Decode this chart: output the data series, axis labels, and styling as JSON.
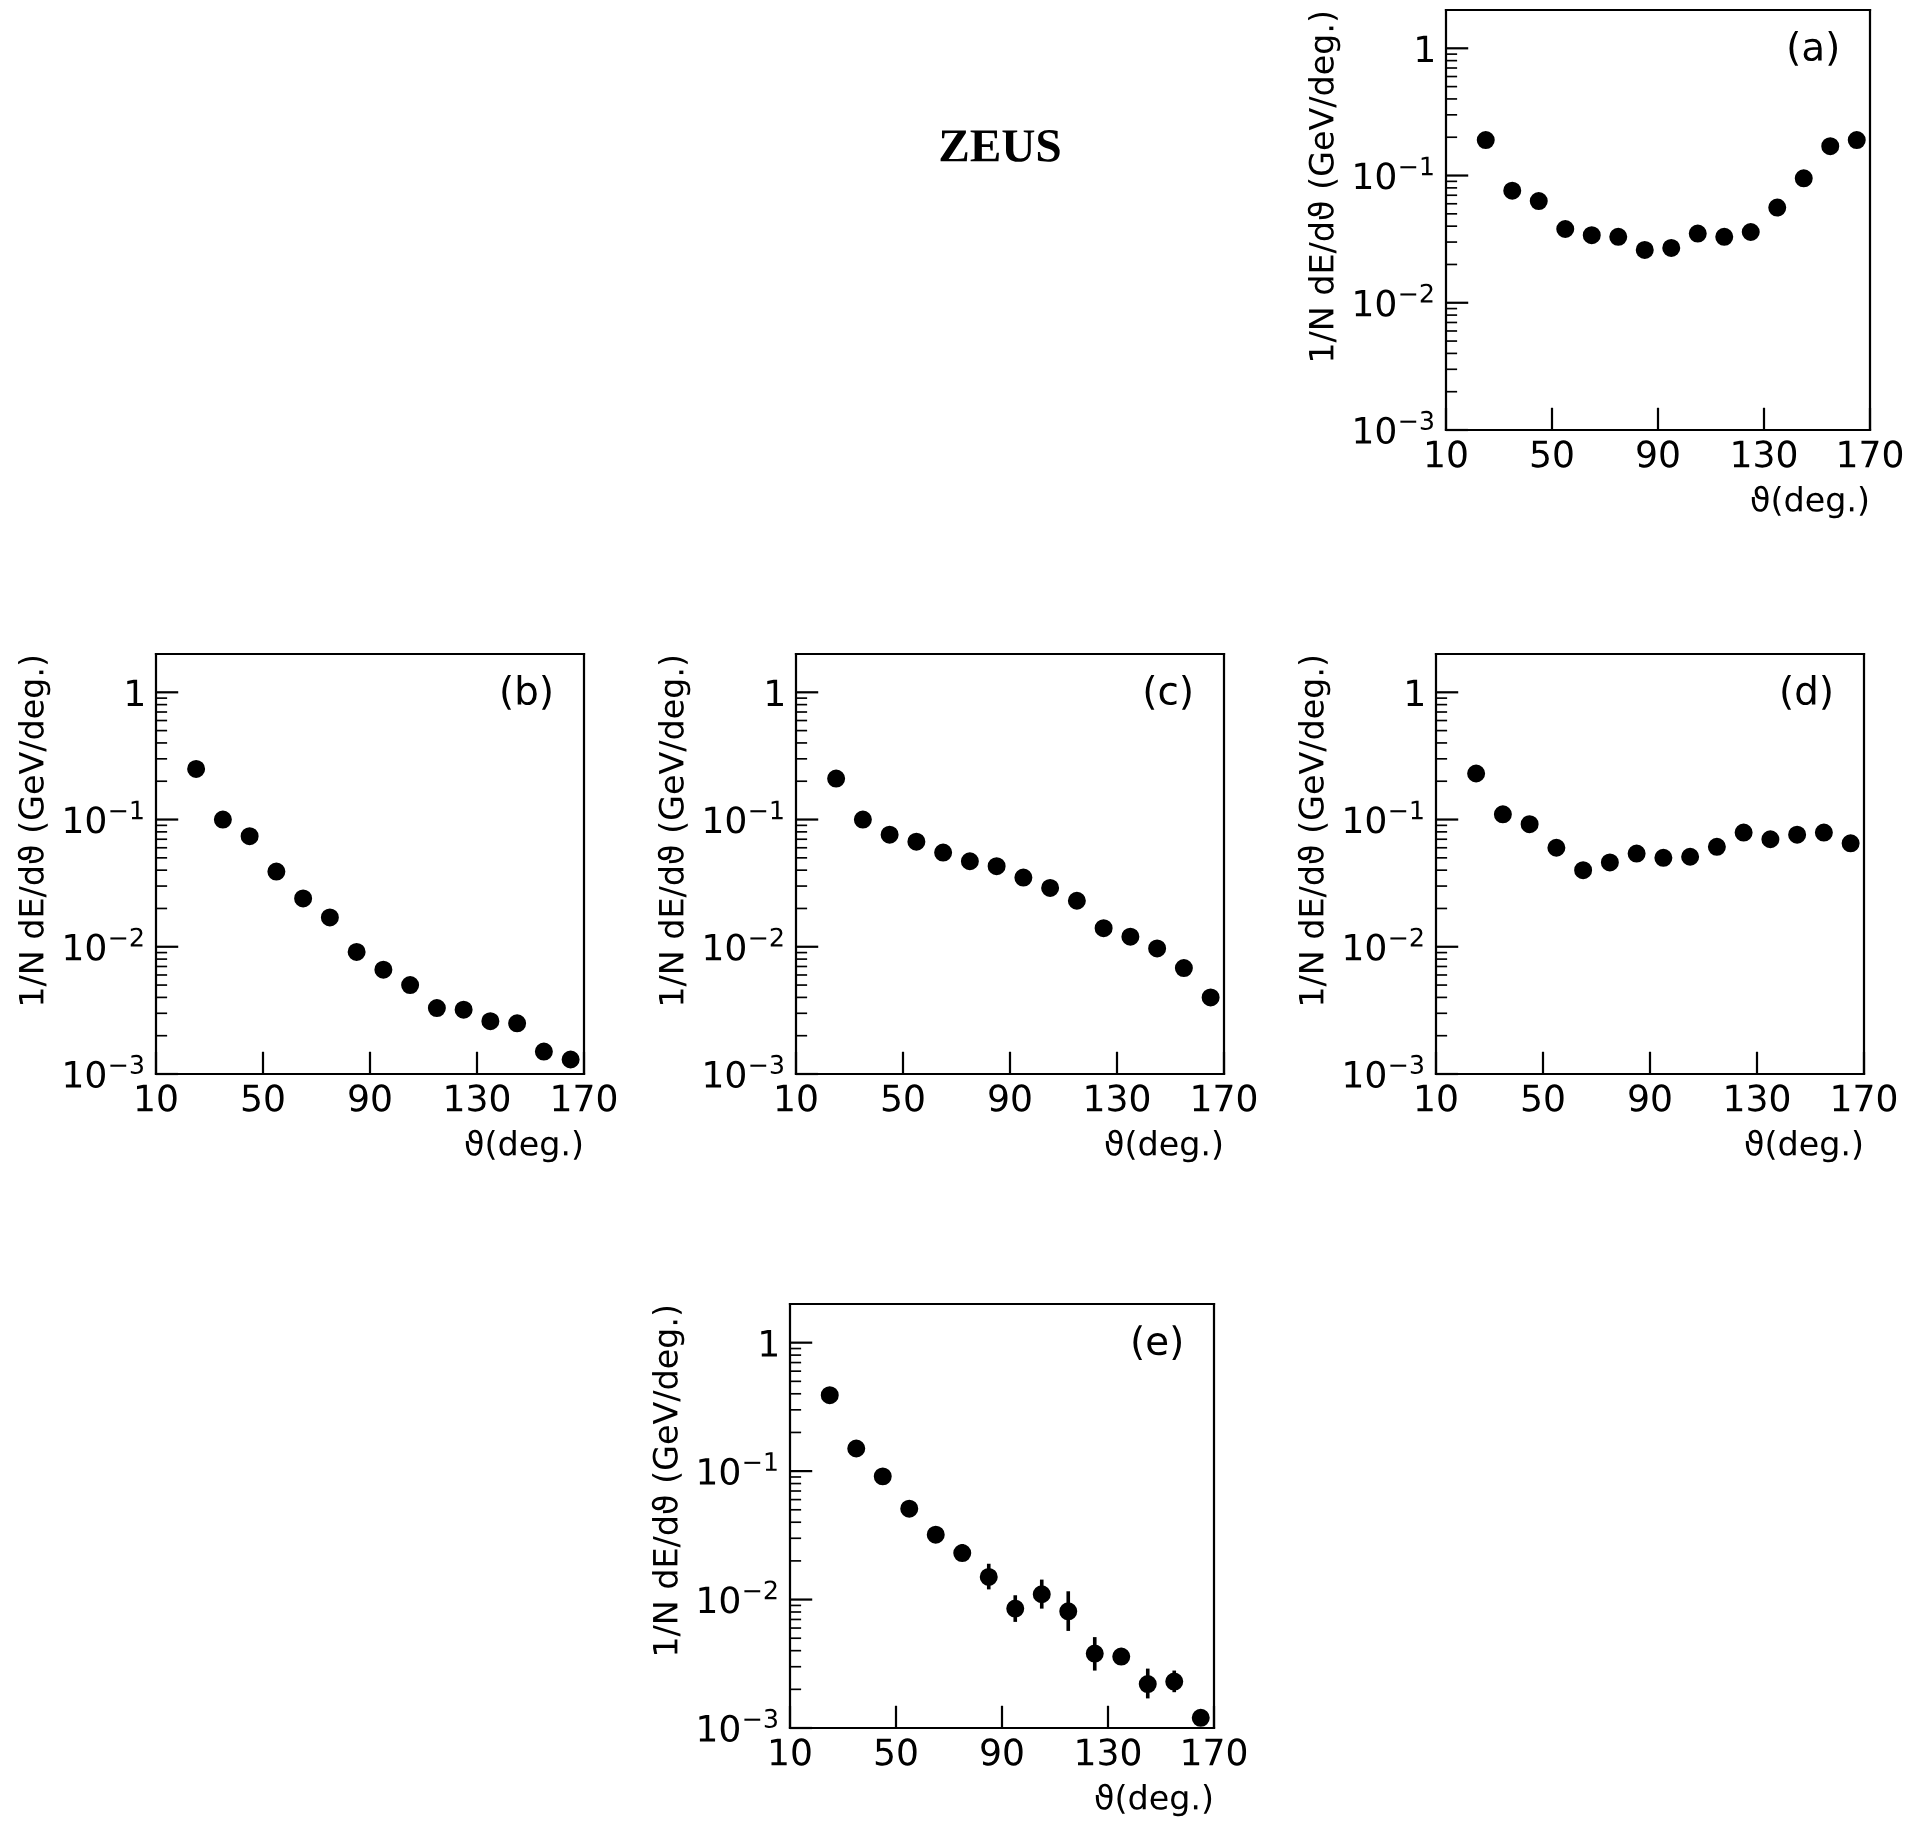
{
  "chart_data": [
    {
      "type": "other",
      "title": "ZEUS"
    },
    {
      "type": "scatter",
      "xlabel": "ϑ(deg.)",
      "ylabel": "1/N dE/dϑ (GeV/deg.)",
      "annotations": [
        "(a)"
      ],
      "log": "y",
      "marker": "circle",
      "x": [
        25,
        35,
        45,
        55,
        65,
        75,
        85,
        95,
        105,
        115,
        125,
        135,
        145,
        155,
        165
      ],
      "series": [
        {
          "color": "#000000",
          "values": [
            0.19,
            0.076,
            0.063,
            0.038,
            0.034,
            0.033,
            0.026,
            0.027,
            0.035,
            0.033,
            0.036,
            0.056,
            0.095,
            0.17,
            0.19
          ]
        }
      ],
      "xlim": [
        10,
        170
      ],
      "xticks": [
        10,
        50,
        90,
        130,
        170
      ],
      "ylim": [
        0.001,
        2
      ],
      "yticks": [
        {
          "value": 0.001,
          "label": "10$^{−3}$"
        },
        {
          "value": 0.01,
          "label": "10$^{−2}$"
        },
        {
          "value": 0.1,
          "label": "10$^{−1}$"
        },
        1
      ]
    },
    {
      "type": "scatter",
      "xlabel": "ϑ(deg.)",
      "ylabel": "1/N dE/dϑ (GeV/deg.)",
      "annotations": [
        "(b)"
      ],
      "log": "y",
      "marker": "circle",
      "x": [
        25,
        35,
        45,
        55,
        65,
        75,
        85,
        95,
        105,
        115,
        125,
        135,
        145,
        155,
        165
      ],
      "series": [
        {
          "color": "#000000",
          "values": [
            0.25,
            0.1,
            0.074,
            0.039,
            0.024,
            0.017,
            0.0091,
            0.0066,
            0.005,
            0.0033,
            0.0032,
            0.0026,
            0.0025,
            0.0015,
            0.0013
          ]
        }
      ],
      "xlim": [
        10,
        170
      ],
      "xticks": [
        10,
        50,
        90,
        130,
        170
      ],
      "ylim": [
        0.001,
        2
      ],
      "yticks": [
        {
          "value": 0.001,
          "label": "10$^{−3}$"
        },
        {
          "value": 0.01,
          "label": "10$^{−2}$"
        },
        {
          "value": 0.1,
          "label": "10$^{−1}$"
        },
        1
      ]
    },
    {
      "type": "scatter",
      "xlabel": "ϑ(deg.)",
      "ylabel": "1/N dE/dϑ (GeV/deg.)",
      "annotations": [
        "(c)"
      ],
      "log": "y",
      "marker": "circle",
      "x": [
        25,
        35,
        45,
        55,
        65,
        75,
        85,
        95,
        105,
        115,
        125,
        135,
        145,
        155,
        165
      ],
      "series": [
        {
          "color": "#000000",
          "values": [
            0.21,
            0.1,
            0.076,
            0.067,
            0.055,
            0.047,
            0.043,
            0.035,
            0.029,
            0.023,
            0.014,
            0.012,
            0.0097,
            0.0068,
            0.004
          ]
        }
      ],
      "xlim": [
        10,
        170
      ],
      "xticks": [
        10,
        50,
        90,
        130,
        170
      ],
      "ylim": [
        0.001,
        2
      ],
      "yticks": [
        {
          "value": 0.001,
          "label": "10$^{−3}$"
        },
        {
          "value": 0.01,
          "label": "10$^{−2}$"
        },
        {
          "value": 0.1,
          "label": "10$^{−1}$"
        },
        1
      ]
    },
    {
      "type": "scatter",
      "xlabel": "ϑ(deg.)",
      "ylabel": "1/N dE/dϑ (GeV/deg.)",
      "annotations": [
        "(d)"
      ],
      "log": "y",
      "marker": "circle",
      "x": [
        25,
        35,
        45,
        55,
        65,
        75,
        85,
        95,
        105,
        115,
        125,
        135,
        145,
        155,
        165
      ],
      "series": [
        {
          "color": "#000000",
          "values": [
            0.23,
            0.11,
            0.092,
            0.06,
            0.04,
            0.046,
            0.054,
            0.05,
            0.051,
            0.061,
            0.079,
            0.07,
            0.076,
            0.079,
            0.065
          ]
        }
      ],
      "xlim": [
        10,
        170
      ],
      "xticks": [
        10,
        50,
        90,
        130,
        170
      ],
      "ylim": [
        0.001,
        2
      ],
      "yticks": [
        {
          "value": 0.001,
          "label": "10$^{−3}$"
        },
        {
          "value": 0.01,
          "label": "10$^{−2}$"
        },
        {
          "value": 0.1,
          "label": "10$^{−1}$"
        },
        1
      ]
    },
    {
      "type": "scatter",
      "xlabel": "ϑ(deg.)",
      "ylabel": "1/N dE/dϑ (GeV/deg.)",
      "annotations": [
        "(e)"
      ],
      "log": "y",
      "marker": "circle",
      "x": [
        25,
        35,
        45,
        55,
        65,
        75,
        85,
        95,
        105,
        115,
        125,
        135,
        145,
        155,
        165
      ],
      "series": [
        {
          "color": "#000000",
          "values": [
            0.39,
            0.15,
            0.091,
            0.051,
            0.032,
            0.023,
            0.015,
            0.0085,
            0.011,
            0.0081,
            0.0038,
            0.0036,
            0.0022,
            0.0023,
            0.0012
          ],
          "errors": [
            null,
            null,
            null,
            [
              0.044,
              0.059
            ],
            [
              0.028,
              0.037
            ],
            [
              0.02,
              0.027
            ],
            [
              0.012,
              0.019
            ],
            [
              0.0067,
              0.0108
            ],
            [
              0.0085,
              0.0143
            ],
            [
              0.0057,
              0.0116
            ],
            [
              0.0028,
              0.0051
            ],
            [
              0.0031,
              0.0042
            ],
            [
              0.0017,
              0.0029
            ],
            [
              0.0019,
              0.0028
            ],
            [
              0.00106,
              0.00136
            ]
          ]
        }
      ],
      "xlim": [
        10,
        170
      ],
      "xticks": [
        10,
        50,
        90,
        130,
        170
      ],
      "ylim": [
        0.001,
        2
      ],
      "yticks": [
        {
          "value": 0.001,
          "label": "10$^{−3}$"
        },
        {
          "value": 0.01,
          "label": "10$^{−2}$"
        },
        {
          "value": 0.1,
          "label": "10$^{−1}$"
        },
        1
      ]
    }
  ]
}
